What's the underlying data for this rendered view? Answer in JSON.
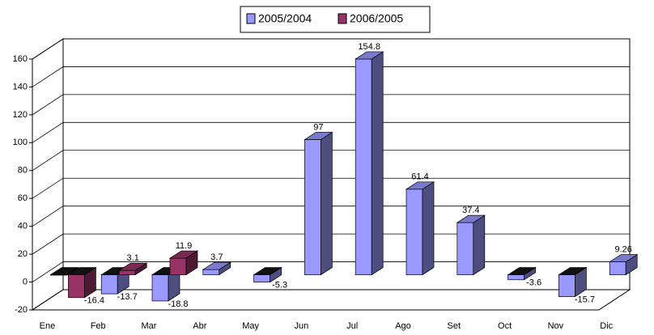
{
  "chart_data": {
    "type": "bar3d",
    "categories": [
      "Ene",
      "Feb",
      "Mar",
      "Abr",
      "May",
      "Jun",
      "Jul",
      "Ago",
      "Set",
      "Oct",
      "Nov",
      "Dic"
    ],
    "series": [
      {
        "name": "2005/2004",
        "color": "#9999ff",
        "values": [
          -0.3,
          -13.7,
          -18.8,
          3.7,
          -5.3,
          97,
          154.8,
          61.4,
          37.4,
          -3.6,
          -15.7,
          9.26
        ]
      },
      {
        "name": "2006/2005",
        "color": "#993366",
        "values": [
          -16.4,
          3.1,
          11.9,
          null,
          null,
          null,
          null,
          null,
          null,
          null,
          null,
          null
        ]
      }
    ],
    "ylim": [
      -20,
      160
    ],
    "yticks": [
      -20,
      0,
      20,
      40,
      60,
      80,
      100,
      120,
      140,
      160
    ],
    "grid": true,
    "legend": "top"
  }
}
